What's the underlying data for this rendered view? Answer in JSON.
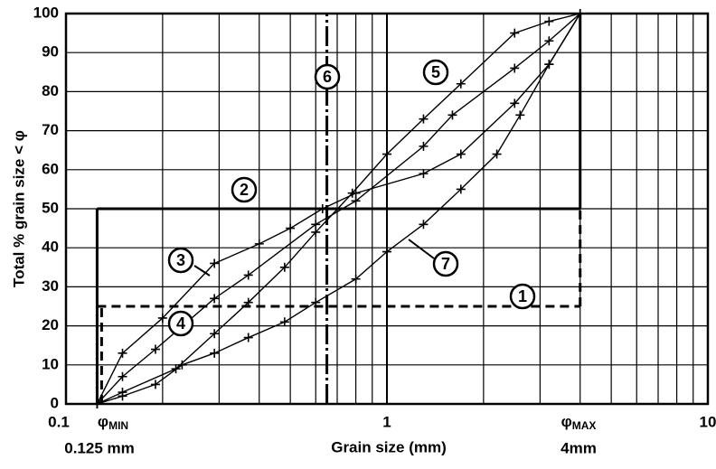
{
  "chart_data": {
    "type": "line",
    "x_label": "Grain size  (mm)",
    "y_label": "Total % grain size < φ",
    "xlim": [
      0.1,
      10
    ],
    "ylim": [
      0,
      100
    ],
    "xticks": [
      0.1,
      1,
      10
    ],
    "yticks": [
      0,
      10,
      20,
      30,
      40,
      50,
      60,
      70,
      80,
      90,
      100
    ],
    "log_x": true,
    "grid": true,
    "boundaries": {
      "d_min": 0.125,
      "d_max": 4,
      "zone1_floor": 25,
      "zone2_floor": 50,
      "line6_x": 0.65,
      "top": 100
    },
    "phi_min": {
      "symbol": "φ",
      "sub": "MIN",
      "size": "0.125 mm"
    },
    "phi_max": {
      "symbol": "φ",
      "sub": "MAX",
      "size": "4mm"
    },
    "zone_labels": [
      "1",
      "2",
      "6"
    ],
    "series": [
      {
        "name": "3",
        "color": "#000000",
        "x": [
          0.125,
          0.15,
          0.2,
          0.29,
          0.4,
          0.5,
          0.63,
          0.8,
          1.3,
          1.7,
          2.5,
          3.2,
          4
        ],
        "values": [
          0,
          13,
          22,
          36,
          41,
          45,
          50,
          54,
          59,
          64,
          77,
          87,
          100
        ]
      },
      {
        "name": "4",
        "color": "#000000",
        "x": [
          0.125,
          0.15,
          0.19,
          0.29,
          0.37,
          0.6,
          0.8,
          1.3,
          1.6,
          2.5,
          3.2,
          4
        ],
        "values": [
          0,
          7,
          14,
          27,
          33,
          46,
          52,
          66,
          74,
          86,
          93,
          100
        ]
      },
      {
        "name": "5",
        "color": "#000000",
        "x": [
          0.125,
          0.15,
          0.22,
          0.29,
          0.37,
          0.48,
          0.6,
          0.78,
          1,
          1.3,
          1.7,
          2.5,
          3.2,
          4
        ],
        "values": [
          0,
          3,
          9,
          18,
          26,
          35,
          44,
          54,
          64,
          73,
          82,
          95,
          98,
          100
        ]
      },
      {
        "name": "7",
        "color": "#000000",
        "x": [
          0.125,
          0.15,
          0.19,
          0.23,
          0.29,
          0.37,
          0.48,
          0.6,
          0.8,
          1,
          1.3,
          1.7,
          2.2,
          2.6,
          3.2,
          4
        ],
        "values": [
          0,
          2,
          5,
          10,
          13,
          17,
          21,
          26,
          32,
          39,
          46,
          55,
          64,
          74,
          87,
          100
        ]
      }
    ]
  }
}
